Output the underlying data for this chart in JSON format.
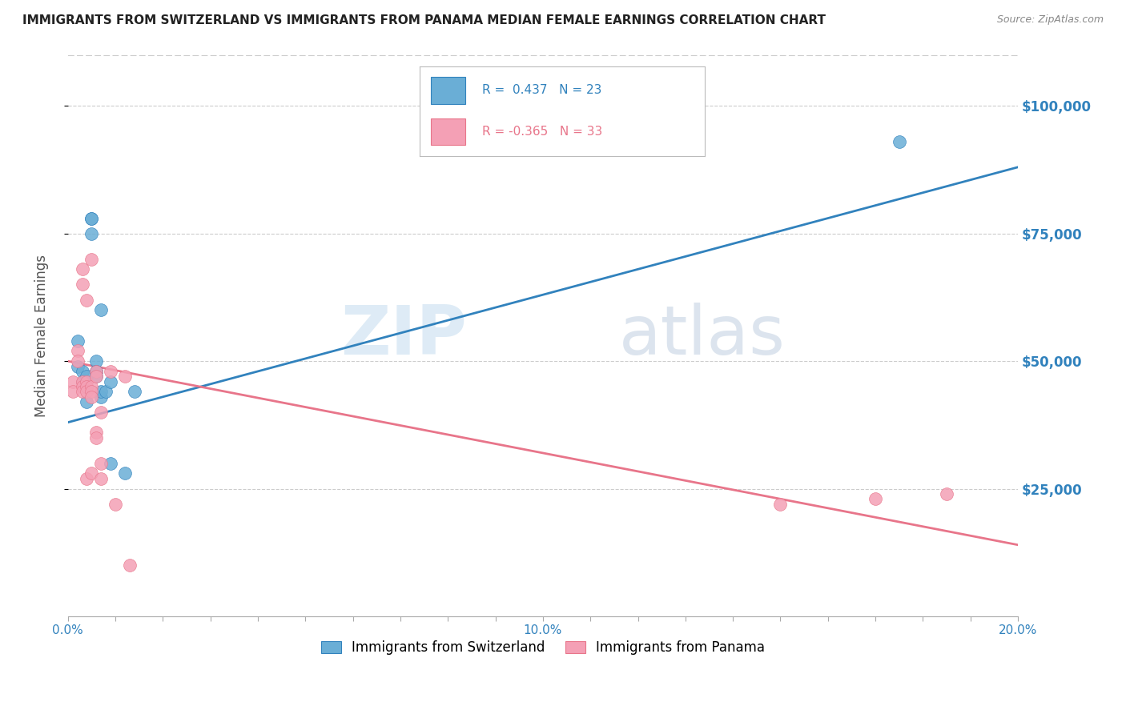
{
  "title": "IMMIGRANTS FROM SWITZERLAND VS IMMIGRANTS FROM PANAMA MEDIAN FEMALE EARNINGS CORRELATION CHART",
  "source": "Source: ZipAtlas.com",
  "ylabel": "Median Female Earnings",
  "xlim": [
    0.0,
    0.2
  ],
  "ylim": [
    0,
    110000
  ],
  "ytick_labels_right": [
    "$25,000",
    "$50,000",
    "$75,000",
    "$100,000"
  ],
  "ytick_positions": [
    25000,
    50000,
    75000,
    100000
  ],
  "legend_label1": "Immigrants from Switzerland",
  "legend_label2": "Immigrants from Panama",
  "color_swiss": "#6aaed6",
  "color_panama": "#f4a0b5",
  "color_swiss_line": "#3182bd",
  "color_panama_line": "#e8758a",
  "background_color": "#ffffff",
  "grid_color": "#cccccc",
  "watermark_zip": "ZIP",
  "watermark_atlas": "atlas",
  "swiss_x": [
    0.002,
    0.002,
    0.003,
    0.003,
    0.004,
    0.004,
    0.004,
    0.005,
    0.005,
    0.005,
    0.006,
    0.006,
    0.006,
    0.006,
    0.007,
    0.007,
    0.007,
    0.008,
    0.009,
    0.009,
    0.012,
    0.014,
    0.175
  ],
  "swiss_y": [
    49000,
    54000,
    48000,
    46000,
    47000,
    42000,
    45000,
    78000,
    78000,
    75000,
    50000,
    48000,
    48000,
    47000,
    60000,
    43000,
    44000,
    44000,
    46000,
    30000,
    28000,
    44000,
    93000
  ],
  "panama_x": [
    0.001,
    0.001,
    0.002,
    0.002,
    0.003,
    0.003,
    0.003,
    0.003,
    0.003,
    0.004,
    0.004,
    0.004,
    0.004,
    0.004,
    0.005,
    0.005,
    0.005,
    0.005,
    0.005,
    0.006,
    0.006,
    0.006,
    0.006,
    0.007,
    0.007,
    0.007,
    0.009,
    0.01,
    0.012,
    0.013,
    0.15,
    0.17,
    0.185
  ],
  "panama_y": [
    46000,
    44000,
    52000,
    50000,
    68000,
    65000,
    46000,
    45000,
    44000,
    62000,
    46000,
    45000,
    44000,
    27000,
    70000,
    45000,
    44000,
    43000,
    28000,
    48000,
    47000,
    36000,
    35000,
    40000,
    30000,
    27000,
    48000,
    22000,
    47000,
    10000,
    22000,
    23000,
    24000
  ],
  "swiss_line_x": [
    0.0,
    0.2
  ],
  "swiss_line_y": [
    38000,
    88000
  ],
  "panama_line_x": [
    0.0,
    0.2
  ],
  "panama_line_y": [
    50000,
    14000
  ]
}
